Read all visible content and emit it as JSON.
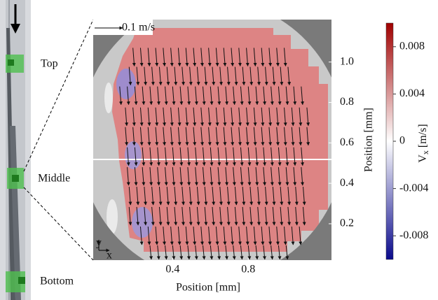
{
  "chart_data": {
    "type": "quiver",
    "xlabel": "Position [mm]",
    "ylabel": "Position [mm]",
    "xlim": [
      -0.02,
      1.24
    ],
    "ylim": [
      0.02,
      1.21
    ],
    "xticks": [
      0.4,
      0.8
    ],
    "yticks": [
      0.2,
      0.4,
      0.6,
      {
        "value": 0.8,
        "label": "0.8"
      },
      {
        "value": 1,
        "label": "1.0"
      }
    ],
    "scale_arrow": {
      "value": 0.1,
      "label": "0.1 m/s"
    },
    "vectors": {
      "x_step": 0.04,
      "y": [
        1.07,
        0.976,
        0.879,
        0.775,
        0.678,
        0.578,
        0.48,
        0.383,
        0.283,
        0.186,
        0.093
      ],
      "x_start": [
        0.19,
        0.17,
        0.12,
        0.15,
        0.15,
        0.16,
        0.16,
        0.17,
        0.17,
        0.23,
        0.28
      ],
      "x_end": [
        1.0,
        1.03,
        1.08,
        1.11,
        1.11,
        1.11,
        1.11,
        1.11,
        1.1,
        1.08,
        1.03
      ],
      "vy": [
        -0.065,
        -0.065,
        -0.065,
        -0.065,
        -0.065,
        -0.065,
        -0.065,
        -0.065,
        -0.065,
        -0.065,
        -0.05
      ]
    },
    "colorbar": {
      "label_symbol": "V",
      "label_subscript": "x",
      "label_unit": "[m/s]",
      "clim": [
        -0.01,
        0.01
      ],
      "ticks": [
        0.008,
        0.004,
        0,
        -0.004,
        -0.008
      ],
      "colors": [
        "#0a0a8c",
        "#ffffff",
        "#a00000"
      ]
    },
    "annotations": {
      "top": "Top",
      "middle": "Middle",
      "bottom": "Bottom",
      "axis_x": "x",
      "axis_y": "y"
    }
  }
}
